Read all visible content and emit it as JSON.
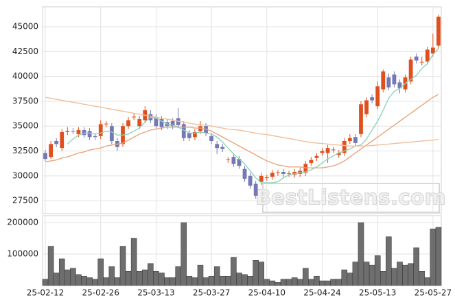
{
  "watermark": "BestListens.com",
  "chart_data": [
    {
      "type": "candlestick",
      "up_color": "#e0501e",
      "down_color": "#7478b4",
      "ylim": [
        26200,
        47000
      ],
      "yticks": [
        27500,
        30000,
        32500,
        35000,
        37500,
        40000,
        42500,
        45000
      ],
      "grid": true,
      "open": [
        32300,
        31900,
        33500,
        32800,
        34400,
        34500,
        34200,
        34600,
        34500,
        34000,
        34000,
        35200,
        35000,
        33500,
        33200,
        35000,
        35900,
        35000,
        35600,
        36200,
        35900,
        35700,
        35400,
        35500,
        35800,
        35200,
        34300,
        33900,
        34500,
        35000,
        34000,
        33200,
        32900,
        31600,
        31900,
        31700,
        30700,
        30000,
        29200,
        29400,
        29800,
        29900,
        30300,
        30400,
        30200,
        30100,
        30200,
        30300,
        31300,
        31800,
        32300,
        32300,
        32600,
        32100,
        32300,
        33500,
        33900,
        34200,
        36200,
        37900,
        37000,
        38700,
        39900,
        40200,
        39400,
        38700,
        39500,
        42000,
        41400,
        41500,
        42300,
        43100
      ],
      "high": [
        32600,
        33500,
        33800,
        34700,
        34900,
        34800,
        34900,
        34900,
        34800,
        34300,
        35600,
        35500,
        35300,
        33800,
        35300,
        35900,
        36300,
        36000,
        37000,
        36600,
        36200,
        36000,
        35700,
        35800,
        36800,
        35500,
        34600,
        34700,
        35500,
        35300,
        34300,
        33500,
        33200,
        31900,
        32200,
        32000,
        31000,
        30300,
        29500,
        30300,
        30100,
        30600,
        30600,
        30700,
        30500,
        30700,
        30800,
        31500,
        31900,
        32300,
        32800,
        33100,
        32900,
        32600,
        33800,
        34200,
        34200,
        37500,
        37900,
        38200,
        39500,
        40700,
        40300,
        40500,
        39700,
        40200,
        42000,
        42300,
        42000,
        43000,
        44300,
        46200
      ],
      "low": [
        31500,
        31700,
        32900,
        32500,
        34100,
        34200,
        33900,
        33800,
        33600,
        33600,
        33700,
        34900,
        33200,
        32500,
        32900,
        34700,
        35600,
        34700,
        35300,
        35300,
        34700,
        34600,
        34700,
        34700,
        34800,
        33500,
        33500,
        33600,
        34200,
        34000,
        33200,
        32200,
        32400,
        31300,
        30900,
        30700,
        29400,
        28700,
        27700,
        29100,
        29500,
        29600,
        30000,
        29900,
        29900,
        29800,
        29900,
        30000,
        31000,
        31500,
        32000,
        31300,
        32300,
        31800,
        32000,
        33200,
        33000,
        33900,
        35900,
        37300,
        36700,
        38400,
        38600,
        38900,
        38300,
        38400,
        39200,
        41300,
        41100,
        41200,
        42000,
        42800
      ],
      "close": [
        31700,
        33200,
        33200,
        34400,
        34500,
        34450,
        34600,
        34100,
        33900,
        33900,
        35200,
        35250,
        33500,
        32900,
        35000,
        35600,
        35950,
        35700,
        36600,
        35600,
        35000,
        34900,
        35000,
        35000,
        35100,
        33800,
        33800,
        34400,
        35000,
        34300,
        33500,
        32800,
        32700,
        31650,
        31200,
        31000,
        29700,
        29000,
        28000,
        30000,
        29850,
        30300,
        30350,
        30200,
        30250,
        30400,
        30500,
        31200,
        31600,
        32000,
        32500,
        32800,
        32650,
        32300,
        33500,
        33800,
        33300,
        37200,
        37600,
        37600,
        39000,
        40500,
        38900,
        39200,
        38800,
        39900,
        41700,
        41600,
        41450,
        42700,
        42900,
        46000
      ],
      "series": [
        {
          "color": "#8fd3bb",
          "values": [
            null,
            null,
            null,
            null,
            33200,
            33700,
            34100,
            34300,
            34300,
            34200,
            34300,
            34500,
            34400,
            34100,
            34100,
            34200,
            34500,
            34800,
            35400,
            35900,
            35800,
            35500,
            35200,
            35100,
            34900,
            34600,
            34300,
            34300,
            34400,
            34300,
            34200,
            33900,
            33400,
            32800,
            32200,
            31700,
            31200,
            30500,
            29800,
            29300,
            29300,
            29300,
            29400,
            29800,
            30100,
            30200,
            30300,
            30400,
            30600,
            30900,
            31300,
            31700,
            32000,
            32300,
            32500,
            32700,
            33000,
            33100,
            33700,
            34600,
            35500,
            36600,
            37800,
            38500,
            38800,
            39300,
            39700,
            40100,
            40800,
            41300,
            42200,
            42800
          ]
        },
        {
          "color": "#eaa47c",
          "values": [
            31400,
            31500,
            31600,
            31800,
            31900,
            32100,
            32300,
            32400,
            32600,
            32700,
            32800,
            33000,
            33100,
            33200,
            33300,
            33600,
            33900,
            34200,
            34400,
            34600,
            34700,
            34800,
            34900,
            34900,
            34900,
            34900,
            34900,
            34800,
            34800,
            34700,
            34500,
            34200,
            33900,
            33600,
            33300,
            33000,
            32700,
            32400,
            32100,
            31800,
            31500,
            31300,
            31100,
            31000,
            30900,
            30900,
            30900,
            30800,
            30800,
            30800,
            30800,
            30900,
            31000,
            31200,
            31500,
            31900,
            32300,
            32700,
            33100,
            33500,
            33900,
            34300,
            34700,
            35100,
            35500,
            35900,
            36300,
            36700,
            37100,
            37500,
            37900,
            38200
          ]
        },
        {
          "color": "#f0bf9c",
          "values": [
            37900,
            37800,
            37700,
            37600,
            37500,
            37400,
            37300,
            37200,
            37100,
            37000,
            36900,
            36800,
            36700,
            36600,
            36500,
            36400,
            36300,
            36200,
            36100,
            36000,
            35900,
            35800,
            35700,
            35600,
            35500,
            35400,
            35300,
            35200,
            35150,
            35100,
            35000,
            34900,
            34800,
            34700,
            34650,
            34600,
            34500,
            34400,
            34300,
            34200,
            34150,
            34050,
            33950,
            33850,
            33750,
            33650,
            33550,
            33450,
            33350,
            33300,
            33250,
            33200,
            33150,
            33100,
            33050,
            33000,
            33000,
            33000,
            33000,
            33050,
            33100,
            33150,
            33200,
            33250,
            33300,
            33350,
            33400,
            33450,
            33500,
            33550,
            33600,
            33650
          ]
        }
      ]
    },
    {
      "type": "bar",
      "color": "#6e6e6e",
      "ylim": [
        0,
        222000
      ],
      "yticks": [
        100000,
        200000
      ],
      "grid": true,
      "categories": [
        "25-02-12",
        null,
        null,
        null,
        null,
        null,
        null,
        null,
        null,
        null,
        "25-02-26",
        null,
        null,
        null,
        null,
        null,
        null,
        null,
        null,
        null,
        "25-03-13",
        null,
        null,
        null,
        null,
        null,
        null,
        null,
        null,
        null,
        "25-03-27",
        null,
        null,
        null,
        null,
        null,
        null,
        null,
        null,
        null,
        "25-04-10",
        null,
        null,
        null,
        null,
        null,
        null,
        null,
        null,
        null,
        "25-04-24",
        null,
        null,
        null,
        null,
        null,
        null,
        null,
        null,
        null,
        "25-05-13",
        null,
        null,
        null,
        null,
        null,
        null,
        null,
        null,
        null,
        "25-05-27",
        null
      ],
      "values": [
        20000,
        125000,
        40000,
        85000,
        50000,
        55000,
        35000,
        30000,
        25000,
        20000,
        85000,
        25000,
        60000,
        25000,
        125000,
        45000,
        150000,
        45000,
        50000,
        70000,
        45000,
        40000,
        25000,
        25000,
        60000,
        200000,
        30000,
        25000,
        65000,
        25000,
        30000,
        60000,
        30000,
        30000,
        90000,
        40000,
        35000,
        30000,
        80000,
        75000,
        20000,
        15000,
        10000,
        20000,
        20000,
        25000,
        20000,
        55000,
        20000,
        30000,
        15000,
        15000,
        20000,
        20000,
        50000,
        40000,
        75000,
        200000,
        75000,
        65000,
        95000,
        45000,
        155000,
        55000,
        75000,
        65000,
        70000,
        120000,
        45000,
        25000,
        180000,
        185000
      ]
    }
  ]
}
